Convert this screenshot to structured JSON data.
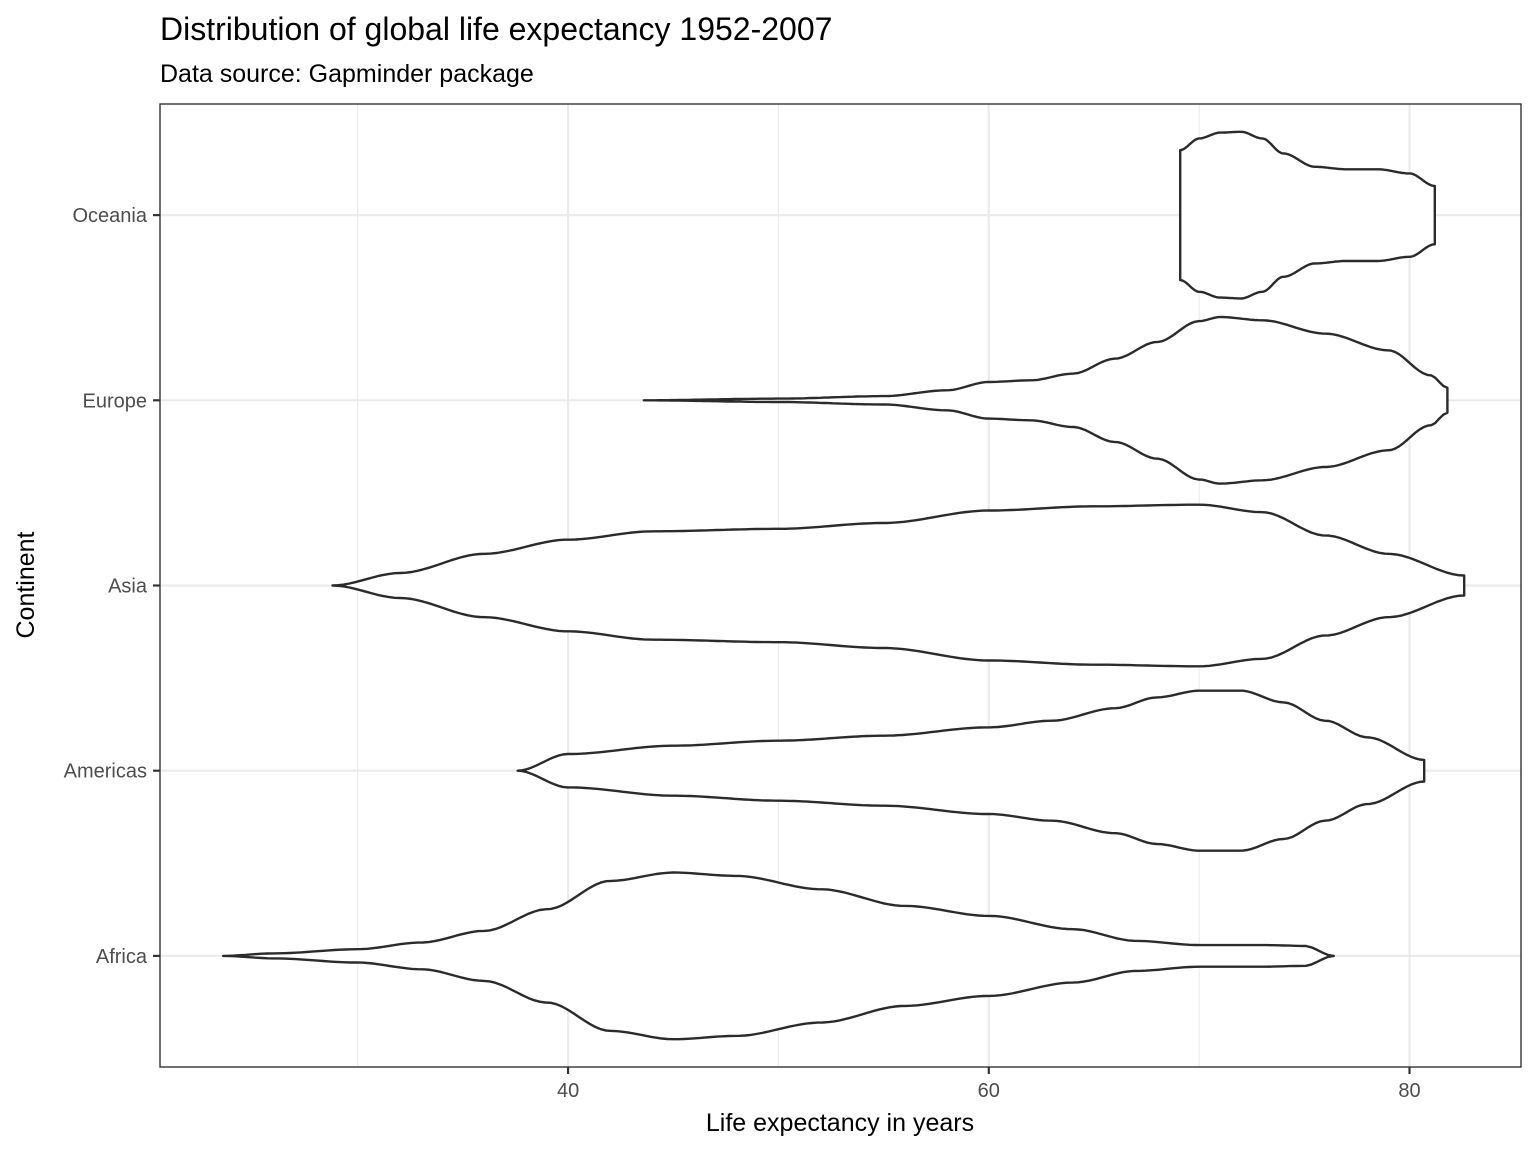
{
  "chart_data": {
    "type": "violin",
    "title": "Distribution of global life expectancy 1952-2007",
    "subtitle": "Data source: Gapminder package",
    "xlabel": "Life expectancy in years",
    "ylabel": "Continent",
    "xlim": [
      20.6,
      85.3
    ],
    "x_ticks": [
      40,
      60,
      80
    ],
    "x_minor_ticks": [
      30,
      50,
      70
    ],
    "categories": [
      "Africa",
      "Americas",
      "Asia",
      "Europe",
      "Oceania"
    ],
    "grid": true,
    "theme": "bw",
    "violin_color": "#2b2b2b",
    "violins": [
      {
        "category": "Africa",
        "min": 23.6,
        "max": 76.4,
        "profile": [
          [
            23.6,
            0
          ],
          [
            26,
            0.03
          ],
          [
            30,
            0.08
          ],
          [
            33,
            0.16
          ],
          [
            36,
            0.3
          ],
          [
            39,
            0.56
          ],
          [
            42,
            0.9
          ],
          [
            45,
            1
          ],
          [
            48,
            0.96
          ],
          [
            52,
            0.8
          ],
          [
            56,
            0.6
          ],
          [
            60,
            0.48
          ],
          [
            64,
            0.32
          ],
          [
            67,
            0.18
          ],
          [
            70,
            0.13
          ],
          [
            73,
            0.13
          ],
          [
            75,
            0.12
          ],
          [
            76.4,
            0
          ]
        ]
      },
      {
        "category": "Americas",
        "min": 37.6,
        "max": 80.7,
        "profile": [
          [
            37.6,
            0
          ],
          [
            40,
            0.2
          ],
          [
            45,
            0.3
          ],
          [
            50,
            0.36
          ],
          [
            55,
            0.42
          ],
          [
            60,
            0.52
          ],
          [
            63,
            0.6
          ],
          [
            66,
            0.75
          ],
          [
            68,
            0.88
          ],
          [
            70,
            0.96
          ],
          [
            72,
            0.96
          ],
          [
            74,
            0.82
          ],
          [
            76,
            0.6
          ],
          [
            78,
            0.4
          ],
          [
            80.7,
            0.13
          ]
        ]
      },
      {
        "category": "Asia",
        "min": 28.8,
        "max": 82.6,
        "profile": [
          [
            28.8,
            0
          ],
          [
            32,
            0.15
          ],
          [
            36,
            0.38
          ],
          [
            40,
            0.55
          ],
          [
            44,
            0.65
          ],
          [
            50,
            0.68
          ],
          [
            55,
            0.75
          ],
          [
            60,
            0.9
          ],
          [
            65,
            0.95
          ],
          [
            70,
            0.97
          ],
          [
            73,
            0.88
          ],
          [
            76,
            0.6
          ],
          [
            79,
            0.38
          ],
          [
            82.6,
            0.12
          ]
        ]
      },
      {
        "category": "Europe",
        "min": 43.6,
        "max": 81.8,
        "profile": [
          [
            43.6,
            0
          ],
          [
            50,
            0.02
          ],
          [
            55,
            0.05
          ],
          [
            58,
            0.12
          ],
          [
            60,
            0.22
          ],
          [
            62,
            0.24
          ],
          [
            64,
            0.32
          ],
          [
            66,
            0.5
          ],
          [
            68,
            0.7
          ],
          [
            70,
            0.95
          ],
          [
            71,
            1
          ],
          [
            73,
            0.96
          ],
          [
            76,
            0.8
          ],
          [
            79,
            0.6
          ],
          [
            81,
            0.3
          ],
          [
            81.8,
            0.15
          ]
        ]
      },
      {
        "category": "Oceania",
        "min": 69.1,
        "max": 81.2,
        "profile": [
          [
            69.1,
            0.78
          ],
          [
            70,
            0.92
          ],
          [
            71,
            0.99
          ],
          [
            72,
            1
          ],
          [
            73,
            0.92
          ],
          [
            74,
            0.74
          ],
          [
            75.5,
            0.58
          ],
          [
            77,
            0.55
          ],
          [
            78.5,
            0.55
          ],
          [
            80,
            0.5
          ],
          [
            81.2,
            0.35
          ]
        ]
      }
    ]
  }
}
